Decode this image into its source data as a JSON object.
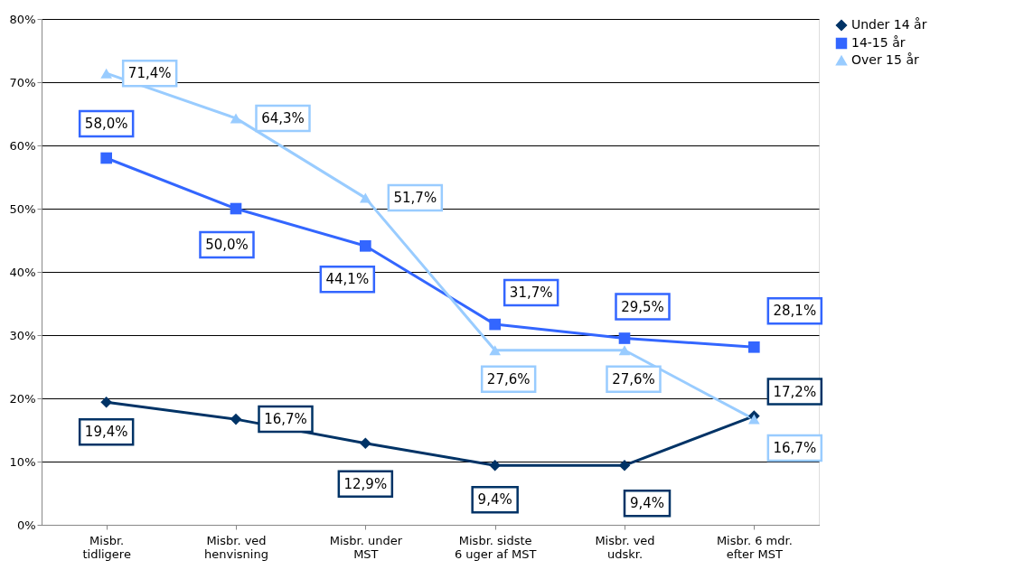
{
  "chart_data": {
    "type": "line",
    "categories": [
      "Misbr. tidligere",
      "Misbr. ved henvisning",
      "Misbr. under MST",
      "Misbr. sidste 6 uger af MST",
      "Misbr. ved udskr.",
      "Misbr. 6 mdr. efter MST"
    ],
    "series": [
      {
        "name": "Under 14 år",
        "color": "#003366",
        "marker": "diamond",
        "values": [
          19.4,
          16.7,
          12.9,
          9.4,
          9.4,
          17.2
        ],
        "value_labels": [
          "19,4%",
          "16,7%",
          "12,9%",
          "9,4%",
          "9,4%",
          "17,2%"
        ]
      },
      {
        "name": "14-15 år",
        "color": "#3366ff",
        "marker": "square",
        "values": [
          58.0,
          50.0,
          44.1,
          31.7,
          29.5,
          28.1
        ],
        "value_labels": [
          "58,0%",
          "50,0%",
          "44,1%",
          "31,7%",
          "29,5%",
          "28,1%"
        ]
      },
      {
        "name": "Over 15 år",
        "color": "#99ccff",
        "marker": "triangle",
        "values": [
          71.4,
          64.3,
          51.7,
          27.6,
          27.6,
          16.7
        ],
        "value_labels": [
          "71,4%",
          "64,3%",
          "51,7%",
          "27,6%",
          "27,6%",
          "16,7%"
        ]
      }
    ],
    "ylim": [
      0,
      80
    ],
    "yticks": [
      {
        "value": 0,
        "label": "0%"
      },
      {
        "value": 10,
        "label": "10%"
      },
      {
        "value": 20,
        "label": "20%"
      },
      {
        "value": 30,
        "label": "30%"
      },
      {
        "value": 40,
        "label": "40%"
      },
      {
        "value": 50,
        "label": "50%"
      },
      {
        "value": 60,
        "label": "60%"
      },
      {
        "value": 70,
        "label": "70%"
      },
      {
        "value": 80,
        "label": "80%"
      }
    ],
    "grid": "y",
    "legend": "right",
    "line_style": "solid"
  }
}
